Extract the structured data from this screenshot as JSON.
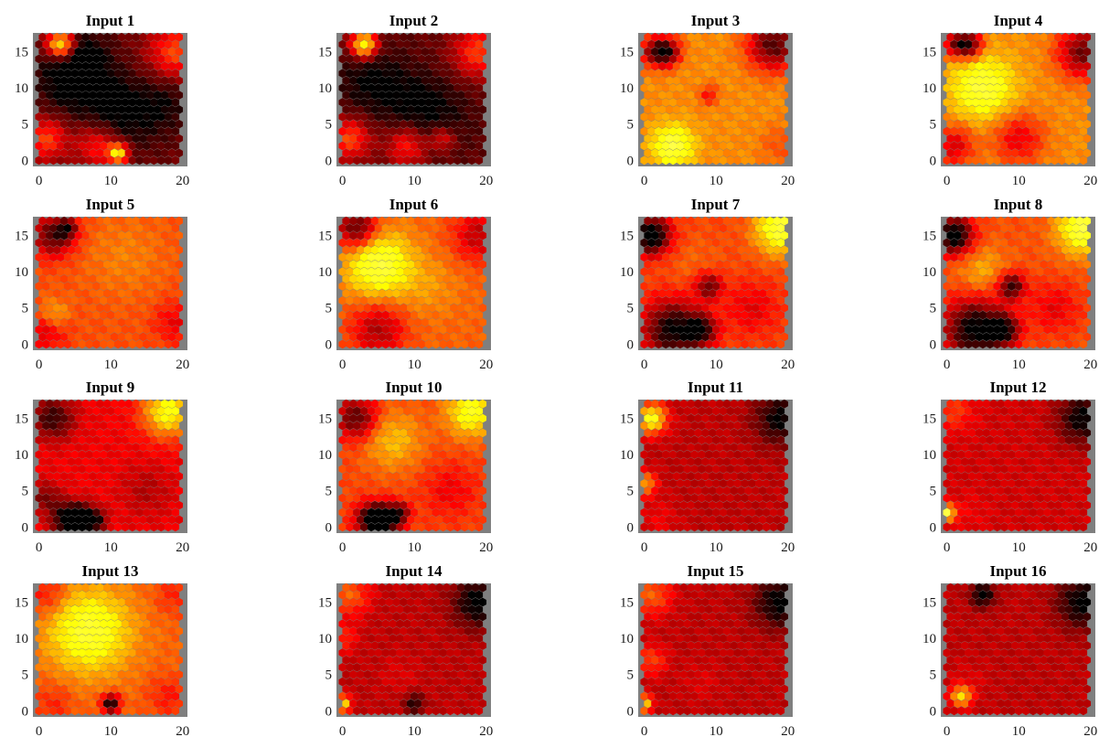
{
  "chart_data": {
    "type": "heatmap",
    "description_free": true,
    "grid": {
      "cols": 21,
      "rows": 18,
      "cell_shape": "hexagon"
    },
    "colormap": "hot",
    "background_color": "#7f7f7f",
    "xlim": [
      0,
      20
    ],
    "ylim": [
      0,
      17
    ],
    "xticks": [
      "0",
      "10",
      "20"
    ],
    "yticks": [
      "0",
      "5",
      "10",
      "15"
    ],
    "panels": [
      {
        "title": "Input 1",
        "base": 0.18,
        "blobs": [
          [
            4,
            11,
            3.4,
            -0.18
          ],
          [
            10,
            8,
            3.2,
            -0.14
          ],
          [
            14,
            6,
            3.5,
            -0.12
          ],
          [
            6,
            14,
            3,
            -0.16
          ],
          [
            18,
            8,
            2.5,
            -0.1
          ],
          [
            3,
            16,
            1.3,
            0.7
          ],
          [
            19,
            15,
            2.5,
            0.33
          ],
          [
            1,
            3,
            2,
            0.32
          ],
          [
            11,
            1,
            1,
            0.6
          ],
          [
            8,
            2,
            2,
            0.25
          ]
        ]
      },
      {
        "title": "Input 2",
        "base": 0.16,
        "blobs": [
          [
            4,
            11,
            3.4,
            -0.16
          ],
          [
            10,
            8,
            3.2,
            -0.12
          ],
          [
            14,
            6,
            3.5,
            -0.1
          ],
          [
            3,
            16,
            1.3,
            0.7
          ],
          [
            19,
            15,
            2.5,
            0.33
          ],
          [
            1,
            3,
            2,
            0.35
          ],
          [
            9,
            2,
            2,
            0.28
          ],
          [
            14,
            3,
            1.2,
            0.25
          ]
        ]
      },
      {
        "title": "Input 3",
        "base": 0.62,
        "blobs": [
          [
            3,
            15,
            1.4,
            -0.55
          ],
          [
            18,
            16,
            2.5,
            -0.5
          ],
          [
            4,
            2,
            2,
            0.32
          ],
          [
            1,
            15,
            1.5,
            -0.25
          ],
          [
            19,
            2,
            2,
            -0.1
          ],
          [
            9,
            9,
            1,
            -0.2
          ]
        ]
      },
      {
        "title": "Input 4",
        "base": 0.62,
        "blobs": [
          [
            5,
            10,
            3,
            0.3
          ],
          [
            3,
            16,
            1.3,
            -0.55
          ],
          [
            19,
            15,
            2.5,
            -0.45
          ],
          [
            1,
            2,
            2,
            -0.28
          ],
          [
            10,
            3,
            2.5,
            -0.25
          ],
          [
            1,
            16,
            1.2,
            -0.3
          ]
        ]
      },
      {
        "title": "Input 5",
        "base": 0.52,
        "blobs": [
          [
            2,
            15,
            2,
            -0.4
          ],
          [
            4,
            16,
            1,
            -0.3
          ],
          [
            12,
            12,
            4,
            0.08
          ],
          [
            1,
            2,
            2,
            -0.2
          ],
          [
            19,
            3,
            2,
            -0.15
          ],
          [
            2,
            4,
            1.5,
            0.2
          ]
        ]
      },
      {
        "title": "Input 6",
        "base": 0.55,
        "blobs": [
          [
            5,
            11,
            3.2,
            0.38
          ],
          [
            2,
            16,
            2,
            -0.45
          ],
          [
            19,
            15,
            2.5,
            -0.25
          ],
          [
            5,
            2,
            2.6,
            -0.28
          ],
          [
            12,
            8,
            3,
            0.08
          ]
        ]
      },
      {
        "title": "Input 7",
        "base": 0.5,
        "blobs": [
          [
            1,
            15,
            1.8,
            -0.6
          ],
          [
            4,
            2,
            2.8,
            -0.5
          ],
          [
            8,
            2,
            1.4,
            -0.4
          ],
          [
            19,
            16,
            2.5,
            0.42
          ],
          [
            9,
            8,
            1.3,
            -0.35
          ],
          [
            15,
            5,
            2.5,
            -0.14
          ],
          [
            7,
            11,
            3,
            0.05
          ]
        ]
      },
      {
        "title": "Input 8",
        "base": 0.52,
        "blobs": [
          [
            1,
            15,
            1.8,
            -0.6
          ],
          [
            4,
            2,
            3,
            -0.55
          ],
          [
            8,
            2,
            1.4,
            -0.4
          ],
          [
            19,
            16,
            2.5,
            0.42
          ],
          [
            9,
            8,
            1.3,
            -0.45
          ],
          [
            15,
            5,
            2.5,
            -0.15
          ],
          [
            5,
            10,
            2.5,
            0.15
          ]
        ]
      },
      {
        "title": "Input 9",
        "base": 0.38,
        "blobs": [
          [
            18,
            16,
            2.5,
            0.45
          ],
          [
            2,
            15,
            2,
            -0.3
          ],
          [
            4,
            1,
            1.5,
            -0.4
          ],
          [
            6,
            1,
            1.5,
            -0.4
          ],
          [
            8,
            1,
            1,
            -0.25
          ],
          [
            15,
            5,
            2.5,
            -0.1
          ],
          [
            1,
            4,
            1.5,
            -0.2
          ]
        ]
      },
      {
        "title": "Input 10",
        "base": 0.5,
        "blobs": [
          [
            18,
            16,
            2.5,
            0.35
          ],
          [
            2,
            15,
            2,
            -0.38
          ],
          [
            4,
            1,
            1.5,
            -0.5
          ],
          [
            6,
            1,
            1.5,
            -0.5
          ],
          [
            8,
            2,
            1,
            -0.3
          ],
          [
            7,
            12,
            3,
            0.2
          ],
          [
            15,
            5,
            2.5,
            -0.12
          ]
        ]
      },
      {
        "title": "Input 11",
        "base": 0.3,
        "blobs": [
          [
            1,
            15,
            1.5,
            0.55
          ],
          [
            19,
            15,
            2.5,
            -0.3
          ],
          [
            0,
            6,
            1.2,
            0.35
          ],
          [
            2,
            1,
            2,
            0.08
          ]
        ]
      },
      {
        "title": "Input 12",
        "base": 0.33,
        "blobs": [
          [
            19,
            15,
            2.5,
            -0.33
          ],
          [
            1,
            16,
            2,
            0.15
          ],
          [
            0,
            2,
            0.8,
            0.6
          ],
          [
            3,
            2,
            2,
            0.05
          ]
        ]
      },
      {
        "title": "Input 13",
        "base": 0.55,
        "blobs": [
          [
            7,
            11,
            4,
            0.35
          ],
          [
            10,
            1,
            0.9,
            -0.55
          ],
          [
            1,
            16,
            2,
            -0.15
          ],
          [
            19,
            16,
            2,
            -0.1
          ],
          [
            18,
            2,
            2,
            -0.12
          ],
          [
            2,
            1,
            2,
            -0.1
          ]
        ]
      },
      {
        "title": "Input 14",
        "base": 0.3,
        "blobs": [
          [
            19,
            15,
            2.5,
            -0.33
          ],
          [
            1,
            16,
            2,
            0.25
          ],
          [
            0,
            1,
            0.8,
            0.5
          ],
          [
            8,
            5,
            2,
            0.05
          ],
          [
            10,
            1,
            1,
            -0.25
          ],
          [
            0,
            10,
            1.5,
            0.15
          ]
        ]
      },
      {
        "title": "Input 15",
        "base": 0.3,
        "blobs": [
          [
            19,
            15,
            2.5,
            -0.33
          ],
          [
            1,
            16,
            2,
            0.25
          ],
          [
            0,
            1,
            0.8,
            0.5
          ],
          [
            8,
            4,
            2,
            0.05
          ],
          [
            1,
            7,
            1.5,
            0.2
          ]
        ]
      },
      {
        "title": "Input 16",
        "base": 0.3,
        "blobs": [
          [
            19,
            15,
            2.5,
            -0.33
          ],
          [
            5,
            16,
            1.2,
            -0.33
          ],
          [
            2,
            2,
            1,
            0.45
          ],
          [
            3,
            4,
            2,
            0.05
          ]
        ]
      }
    ]
  }
}
